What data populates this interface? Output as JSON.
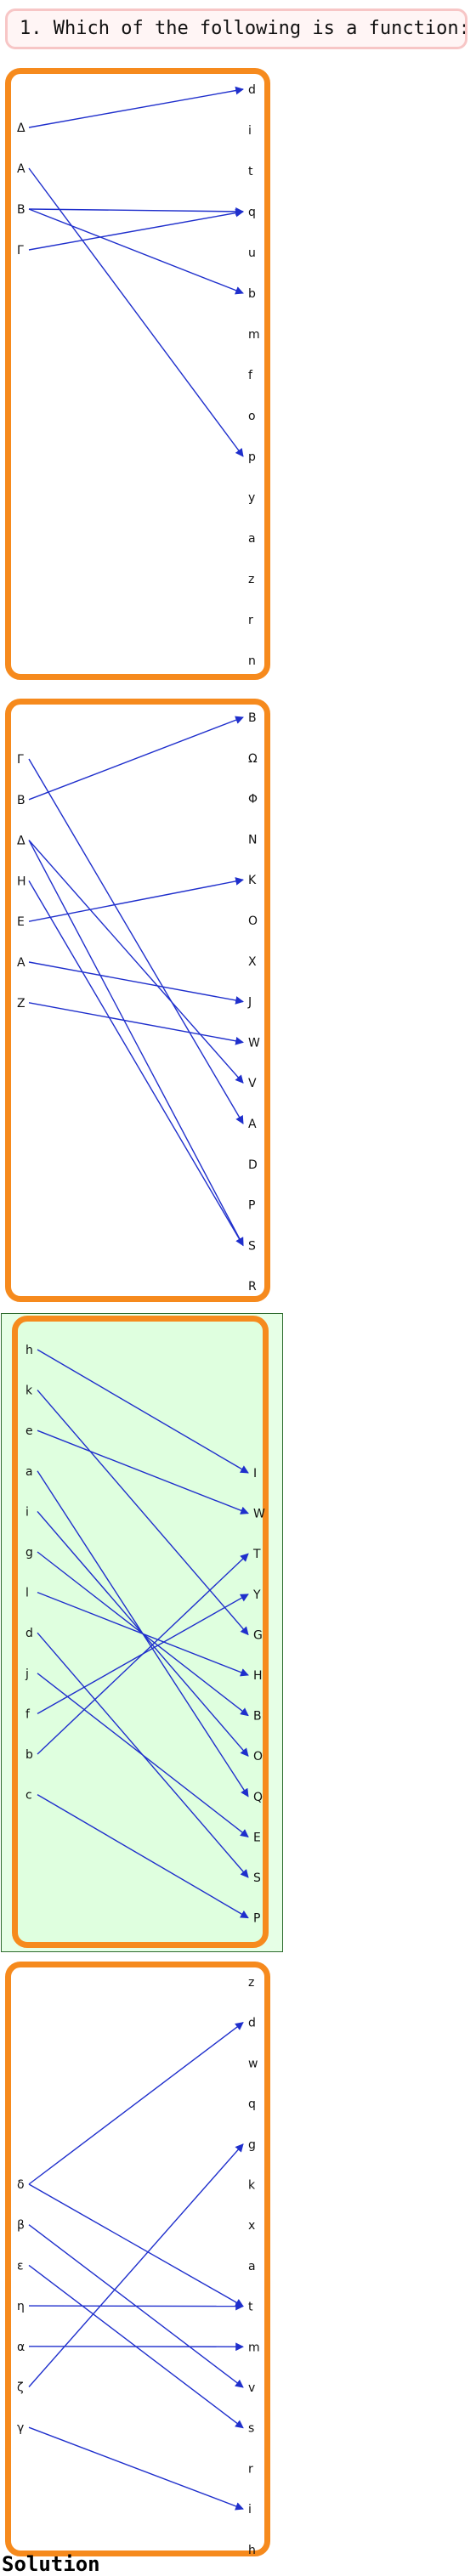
{
  "question": {
    "number": "1.",
    "text": "Which of the following is a function:"
  },
  "options": [
    {
      "id": "A",
      "selected": false,
      "domain": [
        "Δ",
        "Α",
        "Β",
        "Γ"
      ],
      "codomain": [
        "d",
        "i",
        "t",
        "q",
        "u",
        "b",
        "m",
        "f",
        "o",
        "p",
        "y",
        "a",
        "z",
        "r",
        "n"
      ],
      "arrows": [
        [
          "Δ",
          "d"
        ],
        [
          "Α",
          "p"
        ],
        [
          "Β",
          "q"
        ],
        [
          "Β",
          "b"
        ],
        [
          "Γ",
          "q"
        ]
      ]
    },
    {
      "id": "B",
      "selected": false,
      "domain": [
        "Γ",
        "Β",
        "Δ",
        "Η",
        "Ε",
        "Α",
        "Ζ"
      ],
      "codomain": [
        "Β",
        "Ω",
        "Φ",
        "Ν",
        "Κ",
        "Ο",
        "Χ",
        "J",
        "W",
        "V",
        "Α",
        "D",
        "Ρ",
        "S",
        "R"
      ],
      "arrows": [
        [
          "Γ",
          "Α"
        ],
        [
          "Β",
          "Β"
        ],
        [
          "Δ",
          "V"
        ],
        [
          "Δ",
          "S"
        ],
        [
          "Η",
          "S"
        ],
        [
          "Ε",
          "Κ"
        ],
        [
          "Α",
          "J"
        ],
        [
          "Ζ",
          "W"
        ]
      ]
    },
    {
      "id": "C",
      "selected": true,
      "domain": [
        "h",
        "k",
        "e",
        "a",
        "i",
        "g",
        "l",
        "d",
        "j",
        "f",
        "b",
        "c"
      ],
      "codomain": [
        "I",
        "W",
        "T",
        "Y",
        "G",
        "H",
        "B",
        "O",
        "Q",
        "E",
        "S",
        "P"
      ],
      "arrows": [
        [
          "h",
          "I"
        ],
        [
          "k",
          "G"
        ],
        [
          "e",
          "W"
        ],
        [
          "a",
          "Q"
        ],
        [
          "i",
          "O"
        ],
        [
          "g",
          "B"
        ],
        [
          "l",
          "H"
        ],
        [
          "d",
          "S"
        ],
        [
          "j",
          "E"
        ],
        [
          "f",
          "Y"
        ],
        [
          "b",
          "T"
        ],
        [
          "c",
          "P"
        ]
      ]
    },
    {
      "id": "D",
      "selected": false,
      "domain": [
        "δ",
        "β",
        "ε",
        "η",
        "α",
        "ζ",
        "γ"
      ],
      "codomain": [
        "z",
        "d",
        "w",
        "q",
        "g",
        "k",
        "x",
        "a",
        "t",
        "m",
        "v",
        "s",
        "r",
        "i",
        "h"
      ],
      "arrows": [
        [
          "δ",
          "d"
        ],
        [
          "δ",
          "t"
        ],
        [
          "β",
          "v"
        ],
        [
          "ε",
          "s"
        ],
        [
          "η",
          "t"
        ],
        [
          "α",
          "m"
        ],
        [
          "ζ",
          "g"
        ],
        [
          "γ",
          "i"
        ]
      ]
    }
  ],
  "solution_label": "Solution",
  "colors": {
    "arrow": "#1f2fcc",
    "panel_border": "#f68a1d",
    "selected_bg": "#dfffdf"
  }
}
